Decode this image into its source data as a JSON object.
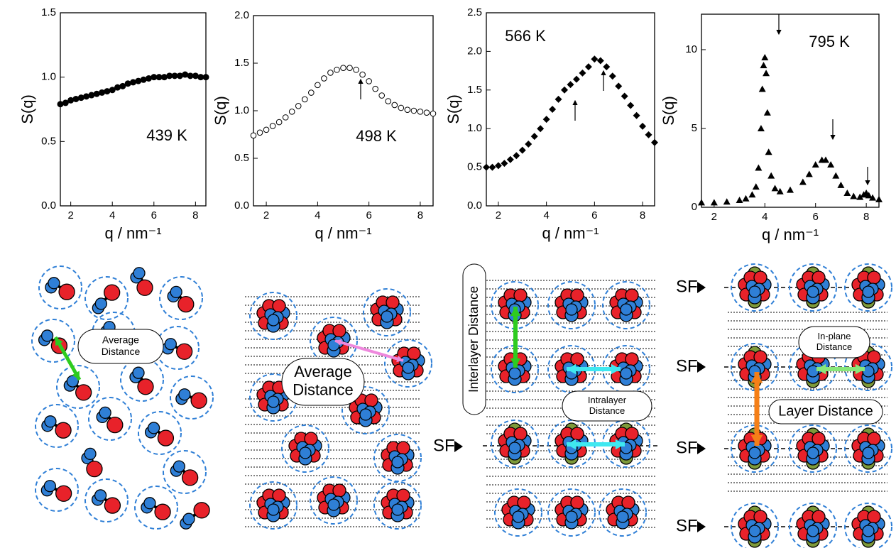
{
  "chart_data": [
    {
      "type": "scatter",
      "marker": "filled-circle",
      "color": "#000000",
      "ylabel": "S(q)",
      "xlabel": "q / nm⁻¹",
      "annotation": "439 K",
      "xlim": [
        1.5,
        8.5
      ],
      "ylim": [
        0,
        1.5
      ],
      "xticks": [
        2,
        4,
        6,
        8
      ],
      "yticks": [
        {
          "value": 0,
          "label": "0.0"
        },
        0.5,
        {
          "value": 1,
          "label": "1.0"
        },
        1.5
      ],
      "x": [
        1.5,
        1.75,
        2,
        2.25,
        2.5,
        2.75,
        3,
        3.25,
        3.5,
        3.75,
        4,
        4.25,
        4.5,
        4.75,
        5,
        5.25,
        5.5,
        5.75,
        6,
        6.25,
        6.5,
        6.75,
        7,
        7.25,
        7.5,
        7.75,
        8,
        8.25,
        8.5
      ],
      "values": [
        0.79,
        0.8,
        0.82,
        0.83,
        0.84,
        0.85,
        0.86,
        0.87,
        0.88,
        0.89,
        0.9,
        0.92,
        0.93,
        0.95,
        0.96,
        0.97,
        0.98,
        0.99,
        1.0,
        1.0,
        1.0,
        1.01,
        1.01,
        1.01,
        1.02,
        1.01,
        1.01,
        1.0,
        1.0
      ]
    },
    {
      "type": "scatter",
      "marker": "open-circle",
      "color": "#000000",
      "ylabel": "S(q)",
      "xlabel": "q / nm⁻¹",
      "annotation": "498 K",
      "xlim": [
        1.5,
        8.5
      ],
      "ylim": [
        0,
        2
      ],
      "xticks": [
        2,
        4,
        6,
        8
      ],
      "yticks": [
        {
          "value": 0,
          "label": "0.0"
        },
        0.5,
        {
          "value": 1,
          "label": "1.0"
        },
        1.5,
        {
          "value": 2,
          "label": "2.0"
        }
      ],
      "x": [
        1.5,
        1.75,
        2,
        2.25,
        2.5,
        2.75,
        3,
        3.25,
        3.5,
        3.75,
        4,
        4.25,
        4.5,
        4.75,
        5,
        5.25,
        5.5,
        5.75,
        6,
        6.25,
        6.5,
        6.75,
        7,
        7.25,
        7.5,
        7.75,
        8,
        8.25,
        8.5
      ],
      "values": [
        0.74,
        0.77,
        0.8,
        0.84,
        0.88,
        0.93,
        0.99,
        1.05,
        1.12,
        1.19,
        1.27,
        1.34,
        1.4,
        1.43,
        1.45,
        1.45,
        1.43,
        1.38,
        1.31,
        1.23,
        1.16,
        1.1,
        1.06,
        1.03,
        1.01,
        1.0,
        0.99,
        0.98,
        0.97
      ]
    },
    {
      "type": "scatter",
      "marker": "filled-diamond",
      "color": "#000000",
      "ylabel": "S(q)",
      "xlabel": "q / nm⁻¹",
      "annotation": "566 K",
      "xlim": [
        1.5,
        8.5
      ],
      "ylim": [
        0,
        2.5
      ],
      "xticks": [
        2,
        4,
        6,
        8
      ],
      "yticks": [
        {
          "value": 0,
          "label": "0.0"
        },
        0.5,
        {
          "value": 1,
          "label": "1.0"
        },
        1.5,
        {
          "value": 2,
          "label": "2.0"
        },
        2.5
      ],
      "x": [
        1.5,
        1.75,
        2,
        2.25,
        2.5,
        2.75,
        3,
        3.25,
        3.5,
        3.75,
        4,
        4.25,
        4.5,
        4.75,
        5,
        5.25,
        5.5,
        5.75,
        6,
        6.25,
        6.5,
        6.75,
        7,
        7.25,
        7.5,
        7.75,
        8,
        8.25,
        8.5
      ],
      "values": [
        0.5,
        0.5,
        0.52,
        0.55,
        0.6,
        0.65,
        0.72,
        0.8,
        0.9,
        1.0,
        1.12,
        1.25,
        1.38,
        1.5,
        1.57,
        1.64,
        1.72,
        1.8,
        1.9,
        1.88,
        1.8,
        1.68,
        1.55,
        1.42,
        1.3,
        1.17,
        1.03,
        0.92,
        0.82
      ]
    },
    {
      "type": "scatter",
      "marker": "filled-triangle",
      "color": "#000000",
      "ylabel": "S(q)",
      "xlabel": "q / nm⁻¹",
      "annotation": "795 K",
      "xlim": [
        1.5,
        8.5
      ],
      "ylim": [
        0,
        12.25
      ],
      "xticks": [
        2,
        4,
        6,
        8
      ],
      "yticks": [
        0,
        5,
        10
      ],
      "x": [
        1.5,
        2,
        2.5,
        3,
        3.25,
        3.5,
        3.65,
        3.75,
        3.85,
        3.9,
        3.95,
        4.0,
        4.05,
        4.1,
        4.15,
        4.25,
        4.4,
        4.6,
        5,
        5.5,
        5.75,
        6,
        6.25,
        6.4,
        6.6,
        6.8,
        7,
        7.25,
        7.5,
        7.75,
        7.9,
        8,
        8.1,
        8.25,
        8.5
      ],
      "values": [
        0.3,
        0.3,
        0.35,
        0.45,
        0.55,
        0.8,
        1.3,
        2.5,
        5,
        7.5,
        9,
        9.5,
        8.5,
        6,
        3.5,
        2,
        1.2,
        1.0,
        1.1,
        1.6,
        2.1,
        2.7,
        3.0,
        3.0,
        2.7,
        2.0,
        1.4,
        0.9,
        0.7,
        0.65,
        0.8,
        0.9,
        0.75,
        0.6,
        0.5
      ]
    }
  ],
  "diagrams": {
    "panel1": {
      "label": [
        "Average",
        "Distance"
      ]
    },
    "panel2": {
      "label": [
        "Average",
        "Distance"
      ]
    },
    "panel3": {
      "interlayer": "Interlayer Distance",
      "intralayer": [
        "Intralayer",
        "Distance"
      ],
      "sf": "SF"
    },
    "panel4": {
      "inplane": [
        "In-plane",
        "Distance"
      ],
      "layer": "Layer Distance",
      "sf": [
        "SF",
        "SF",
        "SF",
        "SF"
      ]
    }
  }
}
